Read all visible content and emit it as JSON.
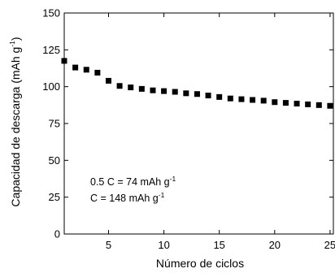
{
  "chart_data": {
    "type": "scatter",
    "xlabel": "Número de ciclos",
    "ylabel": {
      "main": "Capacidad de descarga (mAh g",
      "sup": "-1",
      "end": ")"
    },
    "xlim": [
      1,
      25.3
    ],
    "ylim": [
      0,
      150
    ],
    "xticks": [
      5,
      10,
      15,
      20,
      25
    ],
    "yticks": [
      0,
      25,
      50,
      75,
      100,
      125,
      150
    ],
    "marker": "square",
    "color": "#000000",
    "series": [
      {
        "x": [
          1,
          2,
          3,
          4,
          5,
          6,
          7,
          8,
          9,
          10,
          11,
          12,
          13,
          14,
          15,
          16,
          17,
          18,
          19,
          20,
          21,
          22,
          23,
          24,
          25
        ],
        "y": [
          117.5,
          113,
          111.5,
          109.5,
          104,
          100.5,
          99.5,
          98.5,
          97.5,
          97,
          96.5,
          95.5,
          95,
          94,
          93,
          92,
          91.5,
          91,
          90.5,
          89.5,
          89,
          88.5,
          88,
          87.5,
          87
        ]
      }
    ],
    "annotations": [
      {
        "main": "0.5 C = 74 mAh g",
        "sup": "-1"
      },
      {
        "main": "C = 148 mAh g",
        "sup": "-1"
      }
    ]
  }
}
